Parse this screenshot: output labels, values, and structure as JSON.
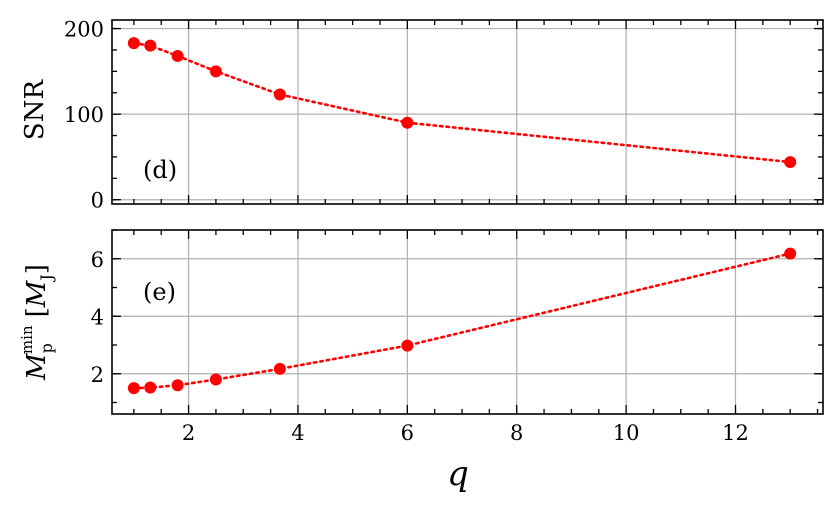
{
  "chart_data": [
    {
      "panel": "top",
      "type": "line",
      "panel_tag": "(d)",
      "ylabel": "SNR",
      "xlabel": "",
      "xlim": [
        0.6,
        13.6
      ],
      "ylim": [
        -5,
        210
      ],
      "xticks": [
        2,
        4,
        6,
        8,
        10,
        12
      ],
      "yticks": [
        0,
        100,
        200
      ],
      "ytick_labels": [
        "0",
        "100",
        "200"
      ],
      "show_x_tick_labels": false,
      "grid": true,
      "color": "#ff0000",
      "series": [
        {
          "x": [
            1.0,
            1.3,
            1.8,
            2.5,
            3.67,
            6.0,
            13.0
          ],
          "y": [
            183,
            180,
            168,
            150,
            123,
            90,
            44
          ]
        }
      ]
    },
    {
      "panel": "bottom",
      "type": "line",
      "panel_tag": "(e)",
      "ylabel_main": "M",
      "ylabel_sub": "p",
      "ylabel_sup": "min",
      "ylabel_unit_open": "[",
      "ylabel_unit_main": "M",
      "ylabel_unit_sub": "J",
      "ylabel_unit_close": "]",
      "xlabel": "q",
      "xlim": [
        0.6,
        13.6
      ],
      "ylim": [
        0.6,
        7.0
      ],
      "xticks": [
        2,
        4,
        6,
        8,
        10,
        12
      ],
      "xtick_labels": [
        "2",
        "4",
        "6",
        "8",
        "10",
        "12"
      ],
      "yticks": [
        2,
        4,
        6
      ],
      "ytick_labels": [
        "2",
        "4",
        "6"
      ],
      "show_x_tick_labels": true,
      "grid": true,
      "color": "#ff0000",
      "series": [
        {
          "x": [
            1.0,
            1.3,
            1.8,
            2.5,
            3.67,
            6.0,
            13.0
          ],
          "y": [
            1.5,
            1.52,
            1.6,
            1.8,
            2.17,
            2.98,
            6.18
          ]
        }
      ]
    }
  ]
}
